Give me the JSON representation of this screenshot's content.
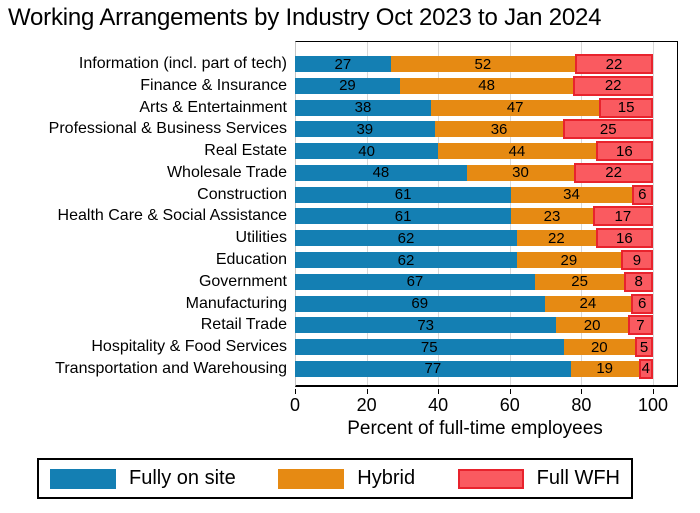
{
  "title": "Working Arrangements by Industry Oct 2023 to Jan 2024",
  "x_axis": {
    "label": "Percent of full-time employees",
    "ticks": [
      0,
      20,
      40,
      60,
      80,
      100
    ]
  },
  "legend": {
    "items": [
      {
        "label": "Fully on site",
        "fill": "#147fb3",
        "border": "#147fb3"
      },
      {
        "label": "Hybrid",
        "fill": "#e68a13",
        "border": "#e68a13"
      },
      {
        "label": "Full WFH",
        "fill": "#fa5a60",
        "border": "#e8232d"
      }
    ]
  },
  "colors": {
    "grid": "#d8d8d8",
    "frame": "#000000",
    "on_site": "#147fb3",
    "hybrid": "#e68a13",
    "wfh_fill": "#fa5a60",
    "wfh_border": "#e8232d"
  },
  "chart_data": {
    "type": "bar",
    "orientation": "horizontal",
    "stacked": true,
    "title": "Working Arrangements by Industry Oct 2023 to Jan 2024",
    "xlabel": "Percent of full-time employees",
    "xlim": [
      0,
      100
    ],
    "grid": true,
    "legend_position": "bottom",
    "categories": [
      "Information (incl. part of tech)",
      "Finance & Insurance",
      "Arts & Entertainment",
      "Professional & Business Services",
      "Real Estate",
      "Wholesale Trade",
      "Construction",
      "Health Care & Social Assistance",
      "Utilities",
      "Education",
      "Government",
      "Manufacturing",
      "Retail Trade",
      "Hospitality & Food Services",
      "Transportation and Warehousing"
    ],
    "series": [
      {
        "name": "Fully on site",
        "color": "#147fb3",
        "values": [
          27,
          29,
          38,
          39,
          40,
          48,
          61,
          61,
          62,
          62,
          67,
          69,
          73,
          75,
          77
        ]
      },
      {
        "name": "Hybrid",
        "color": "#e68a13",
        "values": [
          52,
          48,
          47,
          36,
          44,
          30,
          34,
          23,
          22,
          29,
          25,
          24,
          20,
          20,
          19
        ]
      },
      {
        "name": "Full WFH",
        "color": "#fa5a60",
        "border_color": "#e8232d",
        "values": [
          22,
          22,
          15,
          25,
          16,
          22,
          6,
          17,
          16,
          9,
          8,
          6,
          7,
          5,
          4
        ]
      }
    ]
  }
}
